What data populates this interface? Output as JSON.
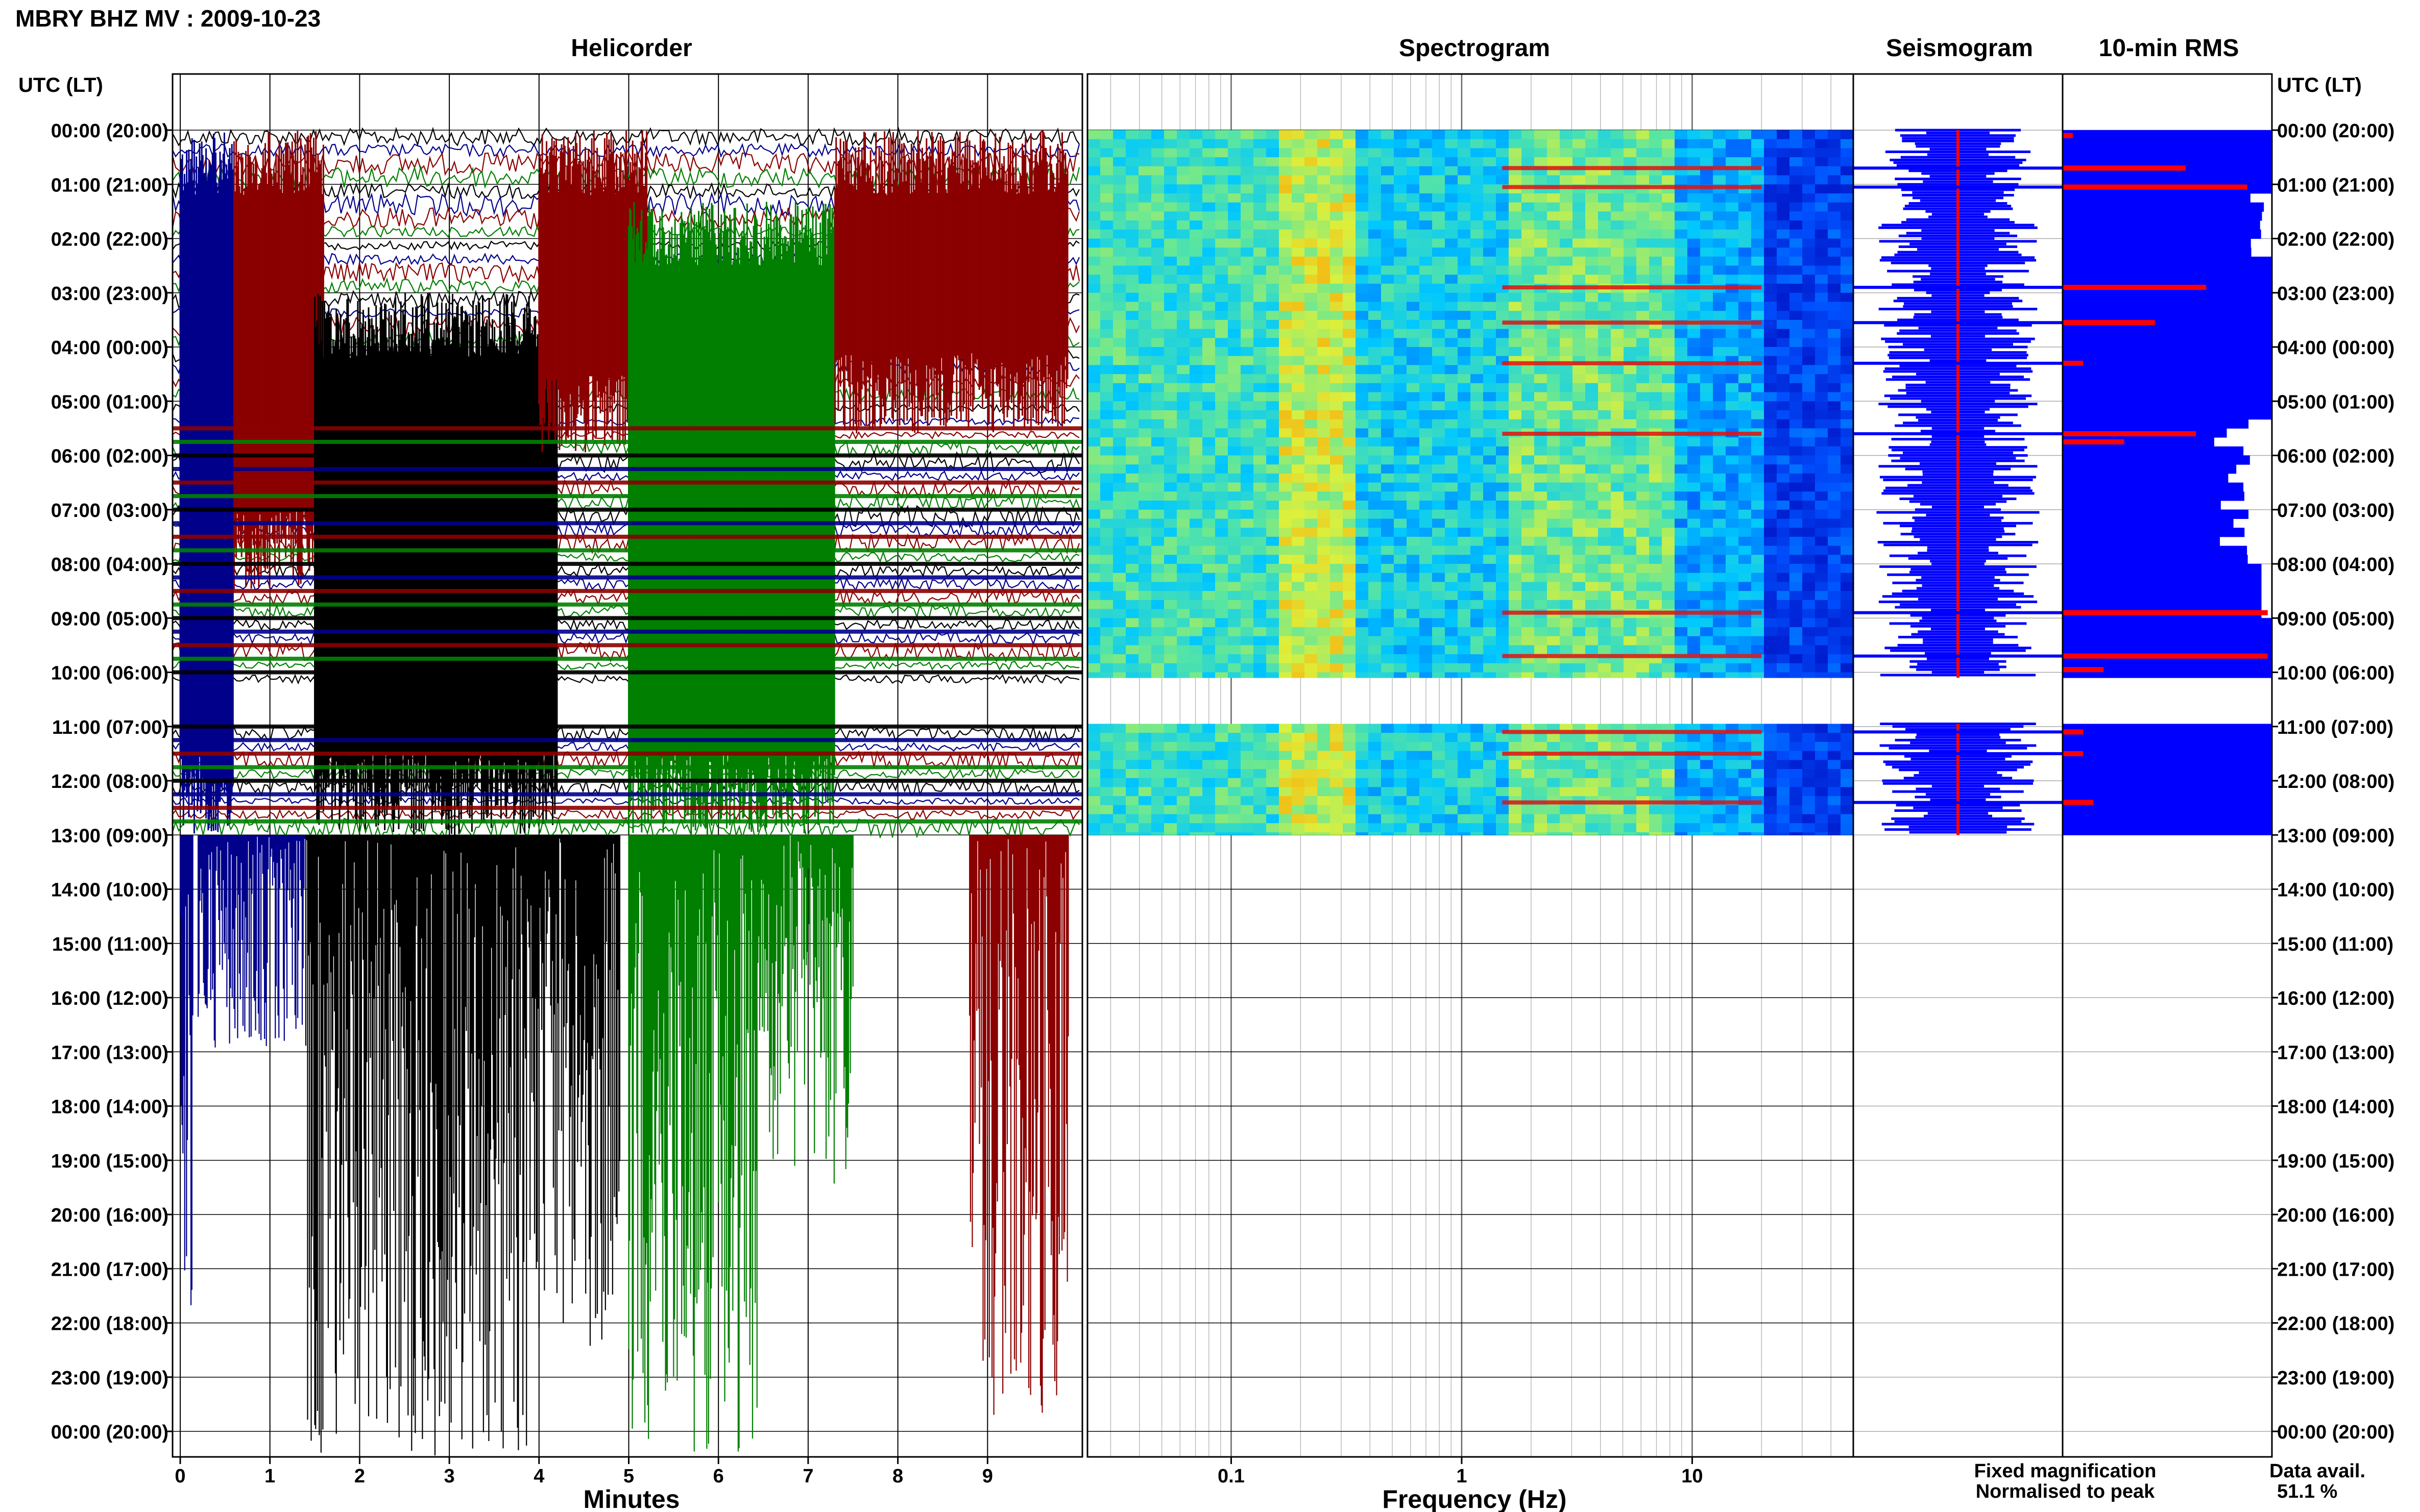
{
  "header": {
    "title": "MBRY BHZ MV : 2009-10-23"
  },
  "panels": {
    "helicorder": "Helicorder",
    "spectrogram": "Spectrogram",
    "seismogram": "Seismogram",
    "rms": "10-min RMS"
  },
  "axis": {
    "left_header": "UTC (LT)",
    "right_header": "UTC (LT)",
    "minutes_label": "Minutes",
    "frequency_label": "Frequency (Hz)"
  },
  "legend": {
    "fixed": "Fixed magnification",
    "normalised": "Normalised to peak",
    "fixed_color": "#0000ff",
    "normalised_color": "#ff0000"
  },
  "availability": {
    "label": "Data avail.",
    "value": "51.1 %"
  },
  "chart_data": {
    "type": "heatmap",
    "time_labels": [
      "00:00 (20:00)",
      "01:00 (21:00)",
      "02:00 (22:00)",
      "03:00 (23:00)",
      "04:00 (00:00)",
      "05:00 (01:00)",
      "06:00 (02:00)",
      "07:00 (03:00)",
      "08:00 (04:00)",
      "09:00 (05:00)",
      "10:00 (06:00)",
      "11:00 (07:00)",
      "12:00 (08:00)",
      "13:00 (09:00)",
      "14:00 (10:00)",
      "15:00 (11:00)",
      "16:00 (12:00)",
      "17:00 (13:00)",
      "18:00 (14:00)",
      "19:00 (15:00)",
      "20:00 (16:00)",
      "21:00 (17:00)",
      "22:00 (18:00)",
      "23:00 (19:00)",
      "00:00 (20:00)"
    ],
    "minute_ticks": [
      "0",
      "1",
      "2",
      "3",
      "4",
      "5",
      "6",
      "7",
      "8",
      "9"
    ],
    "minute_range": [
      0,
      10
    ],
    "frequency_ticks": [
      {
        "value": 0.1,
        "label": "0.1"
      },
      {
        "value": 1,
        "label": "1"
      },
      {
        "value": 10,
        "label": "10"
      }
    ],
    "frequency_range": [
      0.0238,
      50
    ],
    "frequency_scale": "log",
    "data_hours": [
      [
        0,
        10.1
      ],
      [
        10.95,
        13.0
      ]
    ],
    "helicorder_colors": [
      "#000000",
      "#00008b",
      "#8b0000",
      "#007f00"
    ],
    "rms_color": "#0000ff",
    "event_hours": [
      0.7,
      1.05,
      2.9,
      3.55,
      4.3,
      5.6,
      8.9,
      9.7,
      11.1,
      11.5,
      12.4
    ],
    "rms_normalised": [
      {
        "hour": 0.1,
        "level": 0.05
      },
      {
        "hour": 0.7,
        "level": 0.6
      },
      {
        "hour": 1.05,
        "level": 0.9
      },
      {
        "hour": 2.9,
        "level": 0.7
      },
      {
        "hour": 3.55,
        "level": 0.45
      },
      {
        "hour": 4.3,
        "level": 0.1
      },
      {
        "hour": 5.6,
        "level": 0.65
      },
      {
        "hour": 5.75,
        "level": 0.3
      },
      {
        "hour": 8.9,
        "level": 1.0
      },
      {
        "hour": 9.7,
        "level": 1.0
      },
      {
        "hour": 9.95,
        "level": 0.2
      },
      {
        "hour": 11.1,
        "level": 0.1
      },
      {
        "hour": 11.5,
        "level": 0.1
      },
      {
        "hour": 12.4,
        "level": 0.15
      }
    ]
  }
}
